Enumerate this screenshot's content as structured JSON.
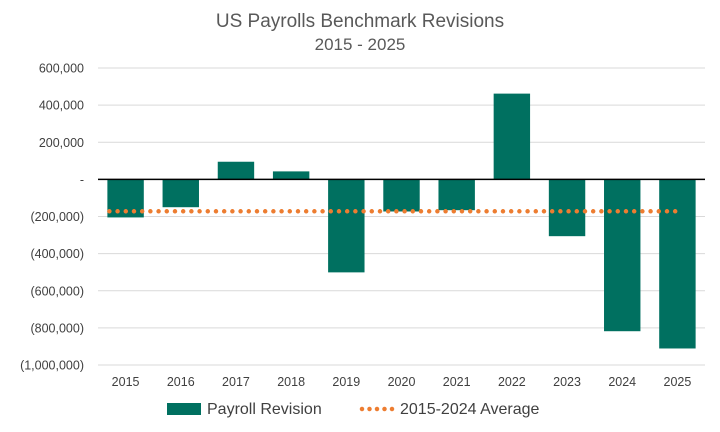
{
  "chart_data": {
    "type": "bar",
    "title": "US Payrolls Benchmark Revisions",
    "subtitle": "2015 - 2025",
    "xlabel": "",
    "ylabel": "",
    "categories": [
      "2015",
      "2016",
      "2017",
      "2018",
      "2019",
      "2020",
      "2021",
      "2022",
      "2023",
      "2024",
      "2025"
    ],
    "series": [
      {
        "name": "Payroll Revision",
        "type": "bar",
        "color": "#007060",
        "values": [
          -205000,
          -150000,
          95000,
          43000,
          -501000,
          -173000,
          -166000,
          462000,
          -306000,
          -818000,
          -911000
        ]
      },
      {
        "name": "2015-2024 Average",
        "type": "line",
        "style": "dotted",
        "color": "#ED7D31",
        "values": [
          -172000,
          -172000,
          -172000,
          -172000,
          -172000,
          -172000,
          -172000,
          -172000,
          -172000,
          -172000,
          -172000
        ]
      }
    ],
    "ylim": [
      -1000000,
      600000
    ],
    "yticks": [
      600000,
      400000,
      200000,
      0,
      -200000,
      -400000,
      -600000,
      -800000,
      -1000000
    ],
    "ytick_labels": [
      "600,000",
      "400,000",
      "200,000",
      "-",
      "(200,000)",
      "(400,000)",
      "(600,000)",
      "(800,000)",
      "(1,000,000)"
    ],
    "grid": true,
    "legend": "bottom"
  },
  "colors": {
    "bar": "#007060",
    "average": "#ED7D31",
    "grid": "#D9D9D9",
    "axis": "#000000"
  }
}
